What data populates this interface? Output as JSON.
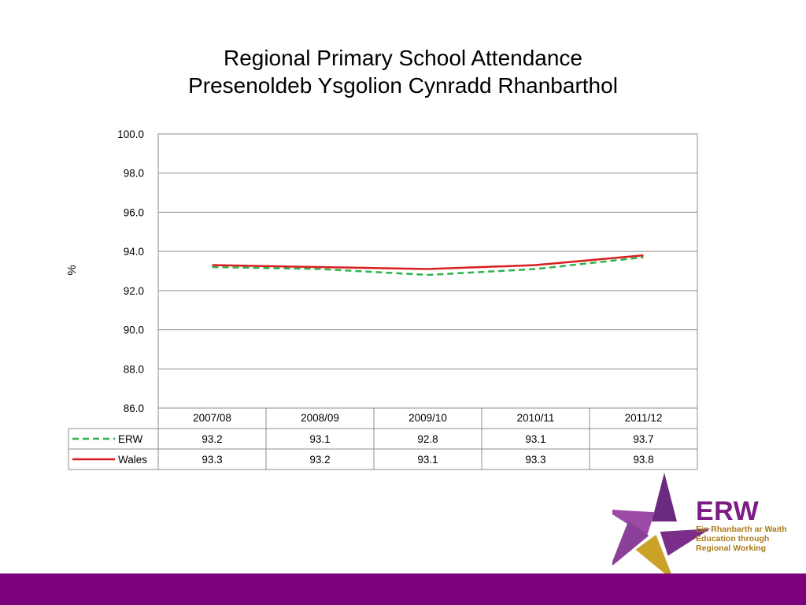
{
  "slide": {
    "title_en": "Regional Primary School Attendance",
    "title_cy": "Presenoldeb Ysgolion Cynradd Rhanbarthol"
  },
  "chart_data": {
    "type": "line",
    "title": "",
    "xlabel": "",
    "ylabel": "%",
    "categories": [
      "2007/08",
      "2008/09",
      "2009/10",
      "2010/11",
      "2011/12"
    ],
    "yticks": [
      "100.0",
      "98.0",
      "96.0",
      "94.0",
      "92.0",
      "90.0",
      "88.0",
      "86.0"
    ],
    "ylim": [
      86.0,
      100.0
    ],
    "grid": true,
    "legend": "data-table-below",
    "series": [
      {
        "name": "ERW",
        "values": [
          93.2,
          93.1,
          92.8,
          93.1,
          93.7
        ],
        "display": [
          "93.2",
          "93.1",
          "92.8",
          "93.1",
          "93.7"
        ],
        "color": "#2db34a",
        "style": "dashed"
      },
      {
        "name": "Wales",
        "values": [
          93.3,
          93.2,
          93.1,
          93.3,
          93.8
        ],
        "display": [
          "93.3",
          "93.2",
          "93.1",
          "93.3",
          "93.8"
        ],
        "color": "#d81f1f",
        "style": "solid"
      }
    ]
  },
  "logo": {
    "brand": "ERW",
    "line1": "Ein Rhanbarth ar Waith",
    "line2": "Education through",
    "line3": "Regional Working",
    "colors": {
      "primary": "#7b1d84",
      "accent": "#c9a227"
    }
  },
  "footer": {
    "color": "#7b007b"
  }
}
